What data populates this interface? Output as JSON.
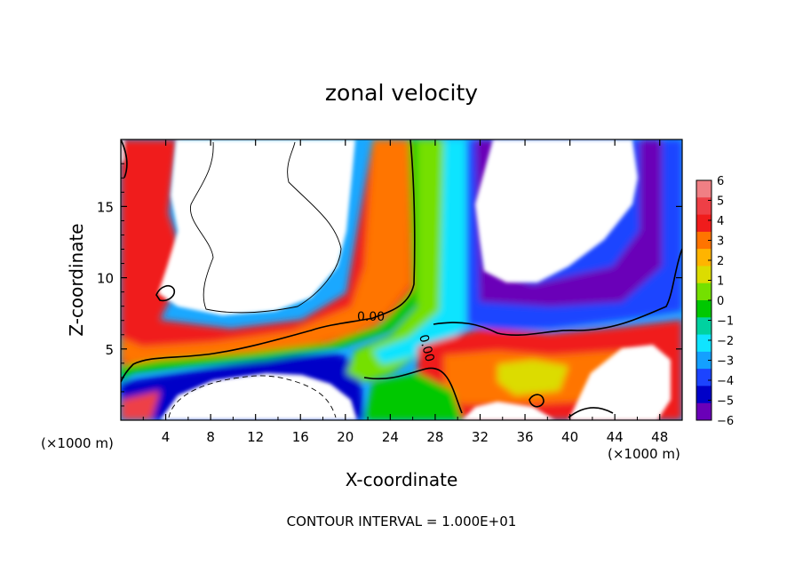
{
  "chart_data": {
    "type": "heatmap",
    "title": "zonal velocity",
    "xlabel": "X-coordinate",
    "ylabel": "Z-coordinate",
    "x_unit_left": "(×1000 m)",
    "x_unit_right": "(×1000 m)",
    "x_ticks": [
      4,
      8,
      12,
      16,
      20,
      24,
      28,
      32,
      36,
      40,
      44,
      48
    ],
    "y_ticks": [
      5,
      10,
      15
    ],
    "xlim": [
      0,
      50
    ],
    "ylim": [
      0,
      19.7
    ],
    "colorbar": {
      "levels": [
        6,
        5,
        4,
        3,
        2,
        1,
        0,
        -1,
        -2,
        -3,
        -4,
        -5,
        -6
      ],
      "colors": [
        "#f07f84",
        "#ee3f46",
        "#f01c1c",
        "#ff7400",
        "#ffb400",
        "#dcdc00",
        "#74e000",
        "#00c800",
        "#00d2a0",
        "#10e4ff",
        "#14a0ff",
        "#1c44ff",
        "#0000c8",
        "#6a00b8"
      ]
    },
    "contour_label": "0.00",
    "contour_label_2": "0.00",
    "contour_interval": "CONTOUR INTERVAL = 1.000E+01"
  }
}
